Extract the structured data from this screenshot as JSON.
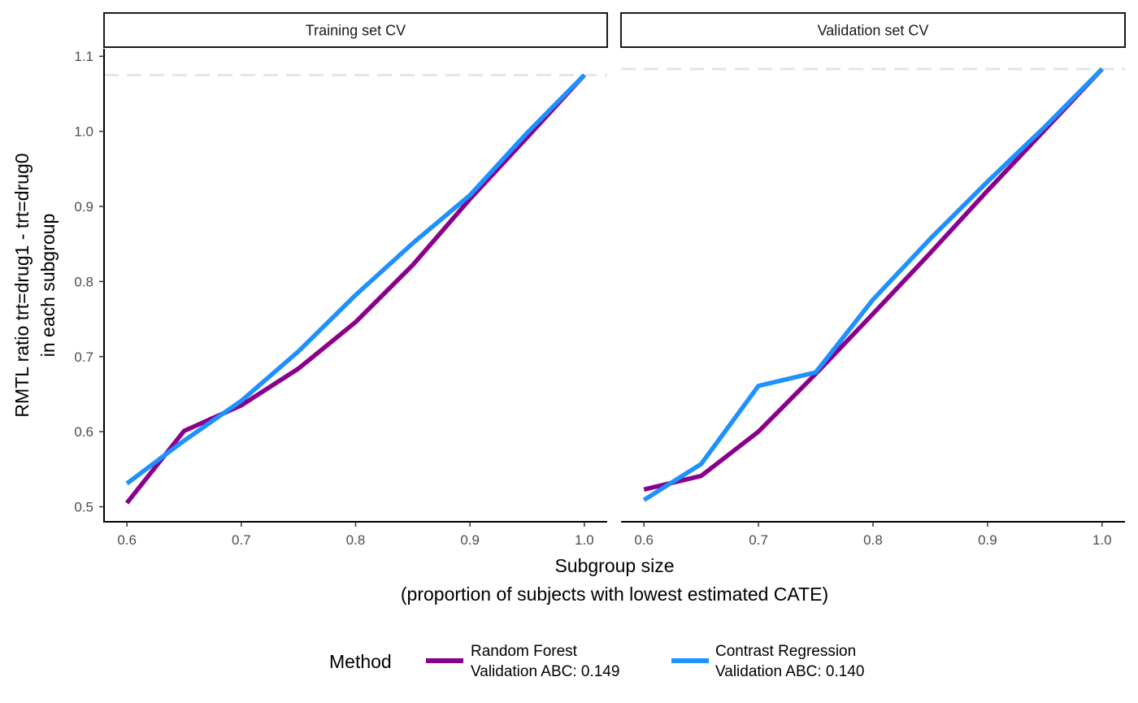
{
  "chart_data": {
    "type": "line",
    "facets": [
      "Training set CV",
      "Validation set CV"
    ],
    "xlabel_line1": "Subgroup size",
    "xlabel_line2": "(proportion of subjects with lowest estimated CATE)",
    "ylabel_line1": "RMTL ratio trt=drug1 - trt=drug0",
    "ylabel_line2": "in each subgroup",
    "x_ticks": [
      "0.6",
      "0.7",
      "0.8",
      "0.9",
      "1.0"
    ],
    "y_ticks": [
      "0.5",
      "0.6",
      "0.7",
      "0.8",
      "0.9",
      "1.0",
      "1.1"
    ],
    "xlim": [
      0.58,
      1.02
    ],
    "ylim": [
      0.48,
      1.11
    ],
    "grid": false,
    "legend_position": "bottom",
    "legend_title": "Method",
    "x": [
      0.6,
      0.65,
      0.7,
      0.75,
      0.8,
      0.85,
      0.9,
      0.95,
      1.0
    ],
    "reference_lines": [
      1.075,
      1.083
    ],
    "reference_color": "#e5e5e5",
    "series": [
      {
        "name_line1": "Random Forest",
        "name_line2": "Validation ABC: 0.149",
        "color": "#8b008b",
        "values_by_facet": [
          [
            0.505,
            0.601,
            0.635,
            0.684,
            0.746,
            0.822,
            0.91,
            0.992,
            1.075
          ],
          [
            0.523,
            0.541,
            0.6,
            0.677,
            0.757,
            0.838,
            0.921,
            1.002,
            1.083
          ]
        ]
      },
      {
        "name_line1": "Contrast Regression",
        "name_line2": "Validation ABC: 0.140",
        "color": "#1e90ff",
        "values_by_facet": [
          [
            0.531,
            0.588,
            0.641,
            0.707,
            0.782,
            0.851,
            0.915,
            0.998,
            1.075
          ],
          [
            0.509,
            0.557,
            0.661,
            0.679,
            0.776,
            0.857,
            0.933,
            1.006,
            1.083
          ]
        ]
      }
    ]
  }
}
